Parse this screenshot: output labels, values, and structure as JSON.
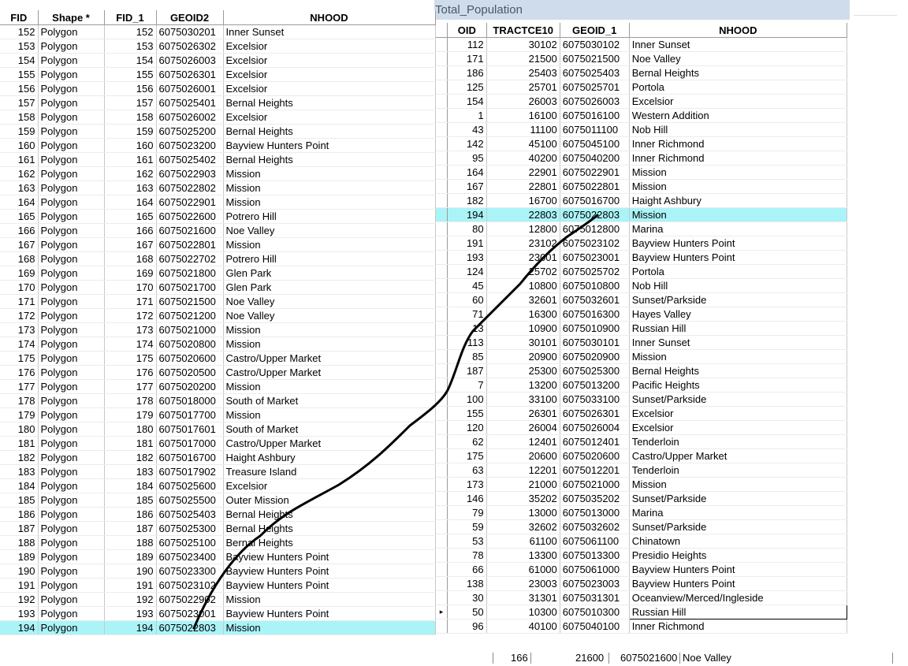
{
  "left_table": {
    "columns": [
      "FID",
      "Shape *",
      "FID_1",
      "GEOID2",
      "NHOOD"
    ],
    "rows": [
      [
        "152",
        "Polygon",
        "152",
        "6075030201",
        "Inner Sunset"
      ],
      [
        "153",
        "Polygon",
        "153",
        "6075026302",
        "Excelsior"
      ],
      [
        "154",
        "Polygon",
        "154",
        "6075026003",
        "Excelsior"
      ],
      [
        "155",
        "Polygon",
        "155",
        "6075026301",
        "Excelsior"
      ],
      [
        "156",
        "Polygon",
        "156",
        "6075026001",
        "Excelsior"
      ],
      [
        "157",
        "Polygon",
        "157",
        "6075025401",
        "Bernal Heights"
      ],
      [
        "158",
        "Polygon",
        "158",
        "6075026002",
        "Excelsior"
      ],
      [
        "159",
        "Polygon",
        "159",
        "6075025200",
        "Bernal Heights"
      ],
      [
        "160",
        "Polygon",
        "160",
        "6075023200",
        "Bayview Hunters Point"
      ],
      [
        "161",
        "Polygon",
        "161",
        "6075025402",
        "Bernal Heights"
      ],
      [
        "162",
        "Polygon",
        "162",
        "6075022903",
        "Mission"
      ],
      [
        "163",
        "Polygon",
        "163",
        "6075022802",
        "Mission"
      ],
      [
        "164",
        "Polygon",
        "164",
        "6075022901",
        "Mission"
      ],
      [
        "165",
        "Polygon",
        "165",
        "6075022600",
        "Potrero Hill"
      ],
      [
        "166",
        "Polygon",
        "166",
        "6075021600",
        "Noe Valley"
      ],
      [
        "167",
        "Polygon",
        "167",
        "6075022801",
        "Mission"
      ],
      [
        "168",
        "Polygon",
        "168",
        "6075022702",
        "Potrero Hill"
      ],
      [
        "169",
        "Polygon",
        "169",
        "6075021800",
        "Glen Park"
      ],
      [
        "170",
        "Polygon",
        "170",
        "6075021700",
        "Glen Park"
      ],
      [
        "171",
        "Polygon",
        "171",
        "6075021500",
        "Noe Valley"
      ],
      [
        "172",
        "Polygon",
        "172",
        "6075021200",
        "Noe Valley"
      ],
      [
        "173",
        "Polygon",
        "173",
        "6075021000",
        "Mission"
      ],
      [
        "174",
        "Polygon",
        "174",
        "6075020800",
        "Mission"
      ],
      [
        "175",
        "Polygon",
        "175",
        "6075020600",
        "Castro/Upper Market"
      ],
      [
        "176",
        "Polygon",
        "176",
        "6075020500",
        "Castro/Upper Market"
      ],
      [
        "177",
        "Polygon",
        "177",
        "6075020200",
        "Mission"
      ],
      [
        "178",
        "Polygon",
        "178",
        "6075018000",
        "South of Market"
      ],
      [
        "179",
        "Polygon",
        "179",
        "6075017700",
        "Mission"
      ],
      [
        "180",
        "Polygon",
        "180",
        "6075017601",
        "South of Market"
      ],
      [
        "181",
        "Polygon",
        "181",
        "6075017000",
        "Castro/Upper Market"
      ],
      [
        "182",
        "Polygon",
        "182",
        "6075016700",
        "Haight Ashbury"
      ],
      [
        "183",
        "Polygon",
        "183",
        "6075017902",
        "Treasure Island"
      ],
      [
        "184",
        "Polygon",
        "184",
        "6075025600",
        "Excelsior"
      ],
      [
        "185",
        "Polygon",
        "185",
        "6075025500",
        "Outer Mission"
      ],
      [
        "186",
        "Polygon",
        "186",
        "6075025403",
        "Bernal Heights"
      ],
      [
        "187",
        "Polygon",
        "187",
        "6075025300",
        "Bernal Heights"
      ],
      [
        "188",
        "Polygon",
        "188",
        "6075025100",
        "Bernal Heights"
      ],
      [
        "189",
        "Polygon",
        "189",
        "6075023400",
        "Bayview Hunters Point"
      ],
      [
        "190",
        "Polygon",
        "190",
        "6075023300",
        "Bayview Hunters Point"
      ],
      [
        "191",
        "Polygon",
        "191",
        "6075023102",
        "Bayview Hunters Point"
      ],
      [
        "192",
        "Polygon",
        "192",
        "6075022902",
        "Mission"
      ],
      [
        "193",
        "Polygon",
        "193",
        "6075023001",
        "Bayview Hunters Point"
      ],
      [
        "194",
        "Polygon",
        "194",
        "6075022803",
        "Mission"
      ]
    ],
    "selected_index": 42,
    "selected_color": "#aaf4f8"
  },
  "right_window": {
    "title": "Total_Population",
    "columns": [
      "OID",
      "TRACTCE10",
      "GEOID_1",
      "NHOOD"
    ],
    "rows": [
      [
        "112",
        "30102",
        "6075030102",
        "Inner Sunset"
      ],
      [
        "171",
        "21500",
        "6075021500",
        "Noe Valley"
      ],
      [
        "186",
        "25403",
        "6075025403",
        "Bernal Heights"
      ],
      [
        "125",
        "25701",
        "6075025701",
        "Portola"
      ],
      [
        "154",
        "26003",
        "6075026003",
        "Excelsior"
      ],
      [
        "1",
        "16100",
        "6075016100",
        "Western Addition"
      ],
      [
        "43",
        "11100",
        "6075011100",
        "Nob Hill"
      ],
      [
        "142",
        "45100",
        "6075045100",
        "Inner Richmond"
      ],
      [
        "95",
        "40200",
        "6075040200",
        "Inner Richmond"
      ],
      [
        "164",
        "22901",
        "6075022901",
        "Mission"
      ],
      [
        "167",
        "22801",
        "6075022801",
        "Mission"
      ],
      [
        "182",
        "16700",
        "6075016700",
        "Haight Ashbury"
      ],
      [
        "194",
        "22803",
        "6075022803",
        "Mission"
      ],
      [
        "80",
        "12800",
        "6075012800",
        "Marina"
      ],
      [
        "191",
        "23102",
        "6075023102",
        "Bayview Hunters Point"
      ],
      [
        "193",
        "23001",
        "6075023001",
        "Bayview Hunters Point"
      ],
      [
        "124",
        "25702",
        "6075025702",
        "Portola"
      ],
      [
        "45",
        "10800",
        "6075010800",
        "Nob Hill"
      ],
      [
        "60",
        "32601",
        "6075032601",
        "Sunset/Parkside"
      ],
      [
        "71",
        "16300",
        "6075016300",
        "Hayes Valley"
      ],
      [
        "13",
        "10900",
        "6075010900",
        "Russian Hill"
      ],
      [
        "113",
        "30101",
        "6075030101",
        "Inner Sunset"
      ],
      [
        "85",
        "20900",
        "6075020900",
        "Mission"
      ],
      [
        "187",
        "25300",
        "6075025300",
        "Bernal Heights"
      ],
      [
        "7",
        "13200",
        "6075013200",
        "Pacific Heights"
      ],
      [
        "100",
        "33100",
        "6075033100",
        "Sunset/Parkside"
      ],
      [
        "155",
        "26301",
        "6075026301",
        "Excelsior"
      ],
      [
        "120",
        "26004",
        "6075026004",
        "Excelsior"
      ],
      [
        "62",
        "12401",
        "6075012401",
        "Tenderloin"
      ],
      [
        "175",
        "20600",
        "6075020600",
        "Castro/Upper Market"
      ],
      [
        "63",
        "12201",
        "6075012201",
        "Tenderloin"
      ],
      [
        "173",
        "21000",
        "6075021000",
        "Mission"
      ],
      [
        "146",
        "35202",
        "6075035202",
        "Sunset/Parkside"
      ],
      [
        "79",
        "13000",
        "6075013000",
        "Marina"
      ],
      [
        "59",
        "32602",
        "6075032602",
        "Sunset/Parkside"
      ],
      [
        "53",
        "61100",
        "6075061100",
        "Chinatown"
      ],
      [
        "78",
        "13300",
        "6075013300",
        "Presidio Heights"
      ],
      [
        "66",
        "61000",
        "6075061000",
        "Bayview Hunters Point"
      ],
      [
        "138",
        "23003",
        "6075023003",
        "Bayview Hunters Point"
      ],
      [
        "30",
        "31301",
        "6075031301",
        "Oceanview/Merced/Ingleside"
      ],
      [
        "50",
        "10300",
        "6075010300",
        "Russian Hill"
      ],
      [
        "96",
        "40100",
        "6075040100",
        "Inner Richmond"
      ]
    ],
    "selected_index": 12,
    "current_index": 40,
    "current_marker": "▸"
  },
  "bottom_row": [
    "166",
    "21600",
    "6075021600",
    "Noe Valley"
  ]
}
